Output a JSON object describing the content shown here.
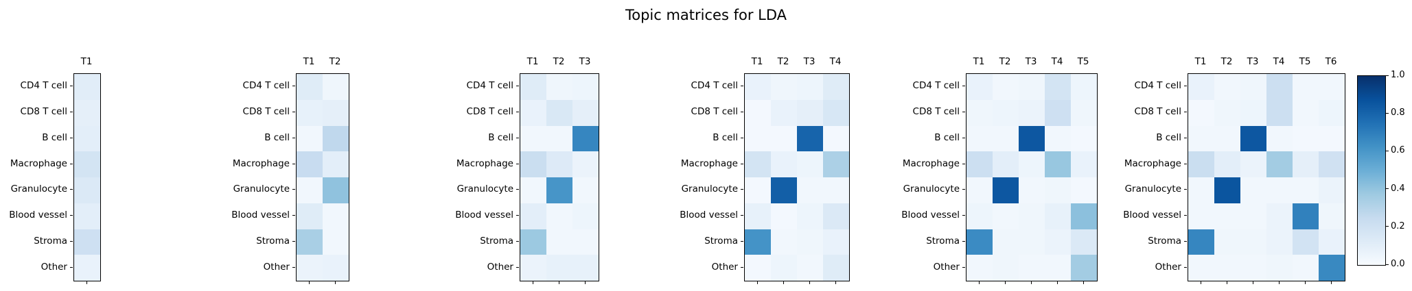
{
  "figure": {
    "title": "Topic matrices for LDA"
  },
  "chart_data": {
    "type": "heatmap",
    "title": "Topic matrices for LDA",
    "colormap": "Blues",
    "vmin": 0.0,
    "vmax": 1.0,
    "grid": false,
    "legend_position": "right-colorbar",
    "colormap_stops": [
      "#f7fbff",
      "#deebf7",
      "#c6dbef",
      "#9ecae1",
      "#6baed6",
      "#4292c6",
      "#2171b5",
      "#08519c",
      "#08306b"
    ],
    "rows": [
      "CD4 T cell",
      "CD8 T cell",
      "B cell",
      "Macrophage",
      "Granulocyte",
      "Blood vessel",
      "Stroma",
      "Other"
    ],
    "matrices": [
      {
        "columns": [
          "T1"
        ],
        "values": [
          [
            0.11
          ],
          [
            0.09
          ],
          [
            0.1
          ],
          [
            0.18
          ],
          [
            0.14
          ],
          [
            0.1
          ],
          [
            0.21
          ],
          [
            0.07
          ]
        ]
      },
      {
        "columns": [
          "T1",
          "T2"
        ],
        "values": [
          [
            0.12,
            0.04
          ],
          [
            0.08,
            0.09
          ],
          [
            0.03,
            0.27
          ],
          [
            0.24,
            0.1
          ],
          [
            0.03,
            0.41
          ],
          [
            0.12,
            0.03
          ],
          [
            0.34,
            0.03
          ],
          [
            0.06,
            0.07
          ]
        ]
      },
      {
        "columns": [
          "T1",
          "T2",
          "T3"
        ],
        "values": [
          [
            0.12,
            0.04,
            0.05
          ],
          [
            0.07,
            0.15,
            0.09
          ],
          [
            0.03,
            0.03,
            0.67
          ],
          [
            0.23,
            0.13,
            0.06
          ],
          [
            0.03,
            0.61,
            0.03
          ],
          [
            0.1,
            0.03,
            0.05
          ],
          [
            0.38,
            0.03,
            0.03
          ],
          [
            0.06,
            0.08,
            0.08
          ]
        ]
      },
      {
        "columns": [
          "T1",
          "T2",
          "T3",
          "T4"
        ],
        "values": [
          [
            0.07,
            0.04,
            0.05,
            0.12
          ],
          [
            0.02,
            0.07,
            0.09,
            0.16
          ],
          [
            0.02,
            0.02,
            0.8,
            0.02
          ],
          [
            0.18,
            0.07,
            0.05,
            0.33
          ],
          [
            0.02,
            0.82,
            0.03,
            0.03
          ],
          [
            0.08,
            0.02,
            0.05,
            0.14
          ],
          [
            0.62,
            0.03,
            0.04,
            0.07
          ],
          [
            0.02,
            0.05,
            0.03,
            0.12
          ]
        ]
      },
      {
        "columns": [
          "T1",
          "T2",
          "T3",
          "T4",
          "T5"
        ],
        "values": [
          [
            0.07,
            0.03,
            0.04,
            0.18,
            0.05
          ],
          [
            0.04,
            0.05,
            0.06,
            0.21,
            0.04
          ],
          [
            0.03,
            0.03,
            0.85,
            0.03,
            0.02
          ],
          [
            0.22,
            0.1,
            0.05,
            0.39,
            0.07
          ],
          [
            0.03,
            0.85,
            0.03,
            0.04,
            0.02
          ],
          [
            0.05,
            0.03,
            0.04,
            0.08,
            0.42
          ],
          [
            0.65,
            0.04,
            0.04,
            0.06,
            0.14
          ],
          [
            0.03,
            0.04,
            0.03,
            0.03,
            0.36
          ]
        ]
      },
      {
        "columns": [
          "T1",
          "T2",
          "T3",
          "T4",
          "T5",
          "T6"
        ],
        "values": [
          [
            0.07,
            0.03,
            0.04,
            0.22,
            0.03,
            0.03
          ],
          [
            0.02,
            0.04,
            0.05,
            0.22,
            0.03,
            0.05
          ],
          [
            0.03,
            0.03,
            0.85,
            0.03,
            0.02,
            0.02
          ],
          [
            0.23,
            0.1,
            0.06,
            0.36,
            0.09,
            0.2
          ],
          [
            0.03,
            0.86,
            0.03,
            0.03,
            0.03,
            0.06
          ],
          [
            0.03,
            0.03,
            0.03,
            0.06,
            0.69,
            0.04
          ],
          [
            0.67,
            0.04,
            0.04,
            0.06,
            0.19,
            0.07
          ],
          [
            0.03,
            0.03,
            0.03,
            0.04,
            0.03,
            0.66
          ]
        ]
      }
    ],
    "colorbar": {
      "tick_labels": [
        "1.0",
        "0.8",
        "0.6",
        "0.4",
        "0.2",
        "0.0"
      ],
      "min_label": "0.0",
      "max_label": "1.0"
    }
  }
}
